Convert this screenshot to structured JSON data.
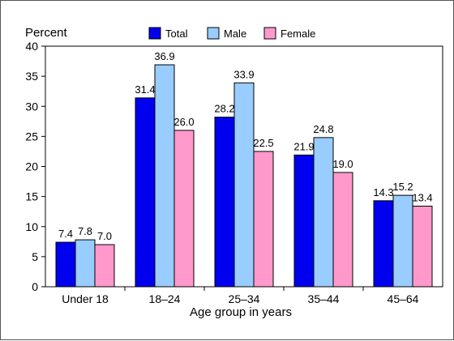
{
  "chart_data": {
    "type": "bar",
    "ylabel": "Percent",
    "xlabel": "Age group in years",
    "ylim": [
      0,
      40
    ],
    "yticks": [
      0,
      5,
      10,
      15,
      20,
      25,
      30,
      35,
      40
    ],
    "categories": [
      "Under 18",
      "18–24",
      "25–34",
      "35–44",
      "45–64"
    ],
    "legend_position": "top",
    "grid": false,
    "series": [
      {
        "name": "Total",
        "color": "#0000EE",
        "values": [
          7.4,
          31.4,
          28.2,
          21.9,
          14.3
        ],
        "labels": [
          "7.4",
          "31.4",
          "28.2",
          "21.9",
          "14.3"
        ]
      },
      {
        "name": "Male",
        "color": "#99CCFF",
        "values": [
          7.8,
          36.9,
          33.9,
          24.8,
          15.2
        ],
        "labels": [
          "7.8",
          "36.9",
          "33.9",
          "24.8",
          "15.2"
        ]
      },
      {
        "name": "Female",
        "color": "#FF99CC",
        "values": [
          7.0,
          26.0,
          22.5,
          19.0,
          13.4
        ],
        "labels": [
          "7.0",
          "26.0",
          "22.5",
          "19.0",
          "13.4"
        ]
      }
    ]
  }
}
